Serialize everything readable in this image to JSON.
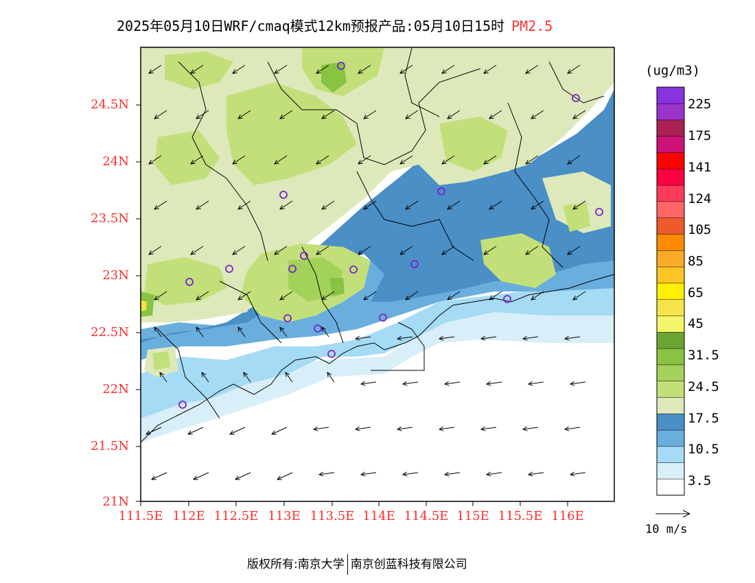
{
  "title": {
    "main": "2025年05月10日WRF/cmaq模式12km预报产品:05月10日15时",
    "species": "PM2.5"
  },
  "unit": "(ug/m3)",
  "lat_ticks": [
    "24.5N",
    "24N",
    "23.5N",
    "23N",
    "22.5N",
    "22N",
    "21.5N",
    "21N"
  ],
  "lon_ticks": [
    "111.5E",
    "112E",
    "112.5E",
    "113E",
    "113.5E",
    "114E",
    "114.5E",
    "115E",
    "115.5E",
    "116E"
  ],
  "colorbar": {
    "colors": [
      "#ffffff",
      "#d8eef8",
      "#a5dbf4",
      "#6aaede",
      "#4a8fc6",
      "#dde9bb",
      "#c3df7a",
      "#a3d25a",
      "#88c341",
      "#6aa534",
      "#f5f56a",
      "#f5e34a",
      "#fff000",
      "#fbc526",
      "#f9ab26",
      "#ff8c00",
      "#ee5a2a",
      "#ff6666",
      "#ff3a5a",
      "#ff0044",
      "#ff0000",
      "#cc1177",
      "#aa2255",
      "#9933cc",
      "#8833dd"
    ],
    "labels": [
      "3.5",
      "10.5",
      "17.5",
      "24.5",
      "31.5",
      "45",
      "65",
      "85",
      "105",
      "124",
      "141",
      "175",
      "225"
    ]
  },
  "wind_scale_label": "10 m/s",
  "footer": {
    "left": "版权所有:南京大学",
    "right": "南京创蓝科技有限公司"
  },
  "colors": {
    "tick_labels": "#ff2a2a",
    "species": "#ff3333",
    "station_marker": "#7a22cc"
  }
}
